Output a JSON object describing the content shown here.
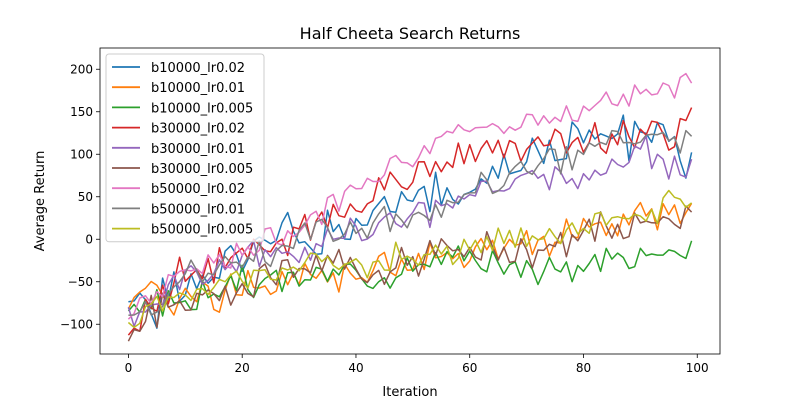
{
  "chart_data": {
    "type": "line",
    "title": "Half Cheeta Search Returns",
    "xlabel": "Iteration",
    "ylabel": "Average Return",
    "xlim": [
      -5,
      104
    ],
    "ylim": [
      -135,
      225
    ],
    "xticks": [
      0,
      20,
      40,
      60,
      80,
      100
    ],
    "yticks": [
      -100,
      -50,
      0,
      50,
      100,
      150,
      200
    ],
    "grid": false,
    "legend": "upper-left",
    "anchors": [
      0,
      10,
      20,
      30,
      40,
      50,
      60,
      70,
      80,
      90,
      99
    ],
    "series": [
      {
        "name": "b10000_lr0.02",
        "color": "#1f77b4",
        "seed": 1,
        "amp": 26,
        "anchors": [
          -85,
          -60,
          -25,
          5,
          20,
          50,
          60,
          85,
          120,
          135,
          95
        ]
      },
      {
        "name": "b10000_lr0.01",
        "color": "#ff7f0e",
        "seed": 2,
        "amp": 16,
        "anchors": [
          -65,
          -65,
          -55,
          -45,
          -40,
          -30,
          -20,
          -5,
          10,
          30,
          25
        ]
      },
      {
        "name": "b10000_lr0.005",
        "color": "#2ca02c",
        "seed": 3,
        "amp": 14,
        "anchors": [
          -85,
          -70,
          -55,
          -45,
          -40,
          -30,
          -25,
          -30,
          -30,
          -20,
          -10
        ]
      },
      {
        "name": "b30000_lr0.02",
        "color": "#d62728",
        "seed": 4,
        "amp": 18,
        "anchors": [
          -110,
          -35,
          -15,
          5,
          40,
          80,
          100,
          110,
          115,
          120,
          130
        ]
      },
      {
        "name": "b30000_lr0.01",
        "color": "#9467bd",
        "seed": 5,
        "amp": 16,
        "anchors": [
          -95,
          -55,
          -20,
          -10,
          10,
          25,
          45,
          70,
          70,
          100,
          80
        ]
      },
      {
        "name": "b30000_lr0.005",
        "color": "#8c564b",
        "seed": 6,
        "amp": 18,
        "anchors": [
          -110,
          -70,
          -50,
          -35,
          -30,
          -25,
          -15,
          -10,
          5,
          15,
          25
        ]
      },
      {
        "name": "b50000_lr0.02",
        "color": "#e377c2",
        "seed": 7,
        "amp": 12,
        "anchors": [
          -85,
          -35,
          -15,
          10,
          70,
          100,
          125,
          140,
          155,
          170,
          185
        ]
      },
      {
        "name": "b50000_lr0.01",
        "color": "#7f7f7f",
        "seed": 8,
        "amp": 16,
        "anchors": [
          -95,
          -50,
          -25,
          -5,
          10,
          30,
          55,
          80,
          100,
          115,
          110
        ]
      },
      {
        "name": "b50000_lr0.005",
        "color": "#bcbd22",
        "seed": 9,
        "amp": 14,
        "anchors": [
          -100,
          -65,
          -40,
          -30,
          -30,
          -20,
          -10,
          0,
          15,
          30,
          40
        ]
      }
    ]
  }
}
